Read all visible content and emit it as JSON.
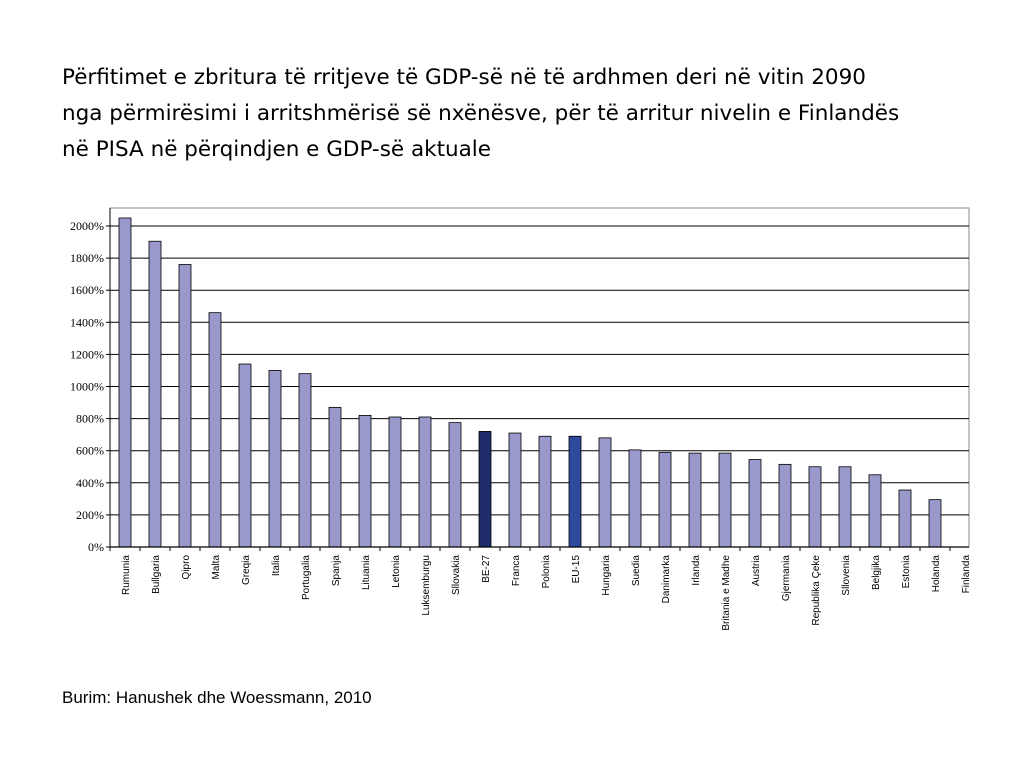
{
  "slide": {
    "title_lines": [
      "Përfitimet e zbritura të rritjeve të GDP-së në të ardhmen deri në vitin 2090",
      "nga përmirësimi i arritshmërisë së nxënësve, për të arritur nivelin e Finlandës",
      "në PISA në përqindjen e GDP-së aktuale"
    ],
    "source": "Burim: Hanushek dhe Woessmann, 2010"
  },
  "chart_data": {
    "type": "bar",
    "title": "",
    "xlabel": "",
    "ylabel": "",
    "ylim": [
      0,
      2000
    ],
    "y_tick_values": [
      0,
      200,
      400,
      600,
      800,
      1000,
      1200,
      1400,
      1600,
      1800,
      2000
    ],
    "y_tick_labels": [
      "0%",
      "200%",
      "400%",
      "600%",
      "800%",
      "1000%",
      "1200%",
      "1400%",
      "1600%",
      "1800%",
      "2000%"
    ],
    "grid": true,
    "legend": "none",
    "categories": [
      "Rumunia",
      "Bullgaria",
      "Qipro",
      "Malta",
      "Greqia",
      "Italia",
      "Portugalia",
      "Spanja",
      "Lituania",
      "Letonia",
      "Luksemburgu",
      "Sllovakia",
      "BE-27",
      "Franca",
      "Polonia",
      "EU-15",
      "Hungaria",
      "Suedia",
      "Danimarka",
      "Irlanda",
      "Britania e Madhe",
      "Austria",
      "Gjermania",
      "Republika Çeke",
      "Sllovenia",
      "Belgjika",
      "Estonia",
      "Holanda",
      "Finlanda"
    ],
    "values": [
      2050,
      1905,
      1760,
      1460,
      1140,
      1100,
      1080,
      870,
      820,
      810,
      810,
      775,
      720,
      710,
      690,
      690,
      680,
      605,
      590,
      585,
      585,
      545,
      515,
      500,
      500,
      450,
      355,
      295,
      0
    ],
    "highlight": {
      "BE-27": "#1f2d6b",
      "EU-15": "#2e4a9c"
    },
    "colors": {
      "bar": "#9999cc",
      "bar_outline": "#000000",
      "grid": "#000000",
      "plot_border": "#888888"
    }
  }
}
